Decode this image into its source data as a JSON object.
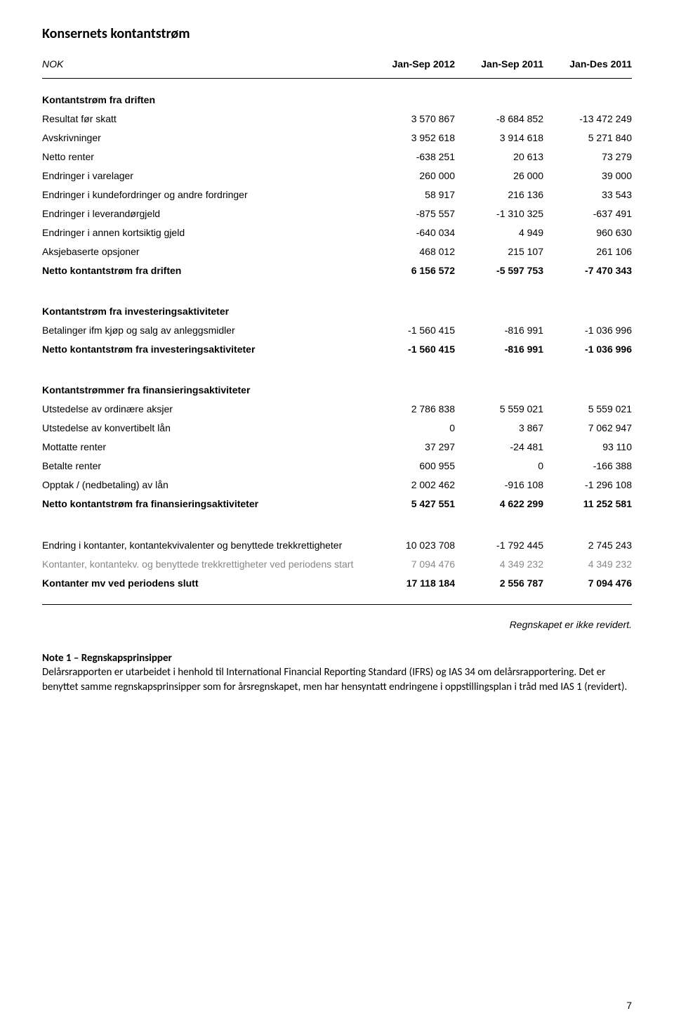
{
  "title": "Konsernets kontantstrøm",
  "currency_label": "NOK",
  "columns": [
    "Jan-Sep 2012",
    "Jan-Sep 2011",
    "Jan-Des 2011"
  ],
  "sections": [
    {
      "head": "Kontantstrøm fra driften",
      "rows": [
        {
          "label": "Resultat før skatt",
          "v": [
            "3 570 867",
            "-8 684 852",
            "-13 472 249"
          ]
        },
        {
          "label": "Avskrivninger",
          "v": [
            "3 952 618",
            "3 914 618",
            "5 271 840"
          ]
        },
        {
          "label": "Netto renter",
          "v": [
            "-638 251",
            "20 613",
            "73 279"
          ]
        },
        {
          "label": "Endringer i varelager",
          "v": [
            "260 000",
            "26 000",
            "39 000"
          ]
        },
        {
          "label": "Endringer i kundefordringer og andre fordringer",
          "v": [
            "58 917",
            "216 136",
            "33 543"
          ]
        },
        {
          "label": "Endringer i leverandørgjeld",
          "v": [
            "-875 557",
            "-1 310 325",
            "-637 491"
          ]
        },
        {
          "label": "Endringer i annen kortsiktig gjeld",
          "v": [
            "-640 034",
            "4 949",
            "960 630"
          ]
        },
        {
          "label": "Aksjebaserte opsjoner",
          "v": [
            "468 012",
            "215 107",
            "261 106"
          ]
        }
      ],
      "net": {
        "label": "Netto kontantstrøm fra driften",
        "v": [
          "6 156 572",
          "-5 597 753",
          "-7 470 343"
        ]
      }
    },
    {
      "head": "Kontantstrøm fra investeringsaktiviteter",
      "rows": [
        {
          "label": "Betalinger ifm kjøp og salg av anleggsmidler",
          "v": [
            "-1 560 415",
            "-816 991",
            "-1 036 996"
          ]
        }
      ],
      "net": {
        "label": "Netto kontantstrøm fra investeringsaktiviteter",
        "v": [
          "-1 560 415",
          "-816 991",
          "-1 036 996"
        ]
      }
    },
    {
      "head": "Kontantstrømmer fra finansieringsaktiviteter",
      "rows": [
        {
          "label": "Utstedelse av ordinære aksjer",
          "v": [
            "2 786 838",
            "5 559 021",
            "5 559 021"
          ]
        },
        {
          "label": "Utstedelse av konvertibelt lån",
          "v": [
            "0",
            "3 867",
            "7 062 947"
          ]
        },
        {
          "label": "Mottatte renter",
          "v": [
            "37 297",
            "-24 481",
            "93 110"
          ]
        },
        {
          "label": "Betalte renter",
          "v": [
            "600 955",
            "0",
            "-166 388"
          ]
        },
        {
          "label": "Opptak / (nedbetaling) av lån",
          "v": [
            "2 002 462",
            "-916 108",
            "-1 296 108"
          ]
        }
      ],
      "net": {
        "label": "Netto kontantstrøm fra finansieringsaktiviteter",
        "v": [
          "5 427 551",
          "4 622 299",
          "11 252 581"
        ]
      }
    }
  ],
  "summary": [
    {
      "label": "Endring i kontanter, kontantekvivalenter og benyttede trekkrettigheter",
      "v": [
        "10 023 708",
        "-1 792 445",
        "2 745 243"
      ],
      "style": "normal"
    },
    {
      "label": "Kontanter, kontantekv. og benyttede trekkrettigheter ved periodens start",
      "v": [
        "7 094 476",
        "4 349 232",
        "4 349 232"
      ],
      "style": "grey"
    },
    {
      "label": "Kontanter mv ved periodens slutt",
      "v": [
        "17 118 184",
        "2 556 787",
        "7 094 476"
      ],
      "style": "bold"
    }
  ],
  "audit_note": "Regnskapet er ikke revidert.",
  "note": {
    "head": "Note 1 – Regnskapsprinsipper",
    "body": "Delårsrapporten er utarbeidet i henhold til International Financial Reporting Standard (IFRS) og IAS 34 om delårsrapportering. Det er benyttet samme regnskapsprinsipper som for årsregnskapet, men har hensyntatt endringene i oppstillingsplan i tråd med IAS 1 (revidert)."
  },
  "page_number": "7"
}
